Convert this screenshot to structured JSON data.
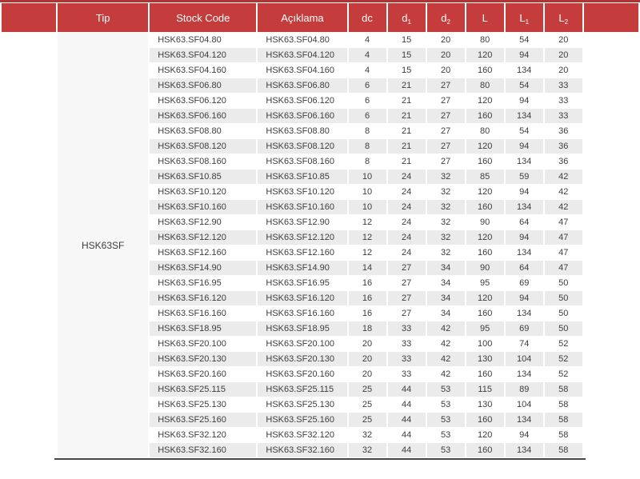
{
  "table": {
    "tip_label": "HSK63SF",
    "headers": [
      {
        "label": "Tip",
        "sub": ""
      },
      {
        "label": "Stock Code",
        "sub": ""
      },
      {
        "label": "Açıklama",
        "sub": ""
      },
      {
        "label": "dc",
        "sub": ""
      },
      {
        "label": "d",
        "sub": "1"
      },
      {
        "label": "d",
        "sub": "2"
      },
      {
        "label": "L",
        "sub": ""
      },
      {
        "label": "L",
        "sub": "1"
      },
      {
        "label": "L",
        "sub": "2"
      }
    ],
    "rows": [
      {
        "stock_code": "HSK63.SF04.80",
        "aciklama": "HSK63.SF04.80",
        "dc": 4,
        "d1": 15,
        "d2": 20,
        "L": 80,
        "L1": 54,
        "L2": 20
      },
      {
        "stock_code": "HSK63.SF04.120",
        "aciklama": "HSK63.SF04.120",
        "dc": 4,
        "d1": 15,
        "d2": 20,
        "L": 120,
        "L1": 94,
        "L2": 20
      },
      {
        "stock_code": "HSK63.SF04.160",
        "aciklama": "HSK63.SF04.160",
        "dc": 4,
        "d1": 15,
        "d2": 20,
        "L": 160,
        "L1": 134,
        "L2": 20
      },
      {
        "stock_code": "HSK63.SF06.80",
        "aciklama": "HSK63.SF06.80",
        "dc": 6,
        "d1": 21,
        "d2": 27,
        "L": 80,
        "L1": 54,
        "L2": 33
      },
      {
        "stock_code": "HSK63.SF06.120",
        "aciklama": "HSK63.SF06.120",
        "dc": 6,
        "d1": 21,
        "d2": 27,
        "L": 120,
        "L1": 94,
        "L2": 33
      },
      {
        "stock_code": "HSK63.SF06.160",
        "aciklama": "HSK63.SF06.160",
        "dc": 6,
        "d1": 21,
        "d2": 27,
        "L": 160,
        "L1": 134,
        "L2": 33
      },
      {
        "stock_code": "HSK63.SF08.80",
        "aciklama": "HSK63.SF08.80",
        "dc": 8,
        "d1": 21,
        "d2": 27,
        "L": 80,
        "L1": 54,
        "L2": 36
      },
      {
        "stock_code": "HSK63.SF08.120",
        "aciklama": "HSK63.SF08.120",
        "dc": 8,
        "d1": 21,
        "d2": 27,
        "L": 120,
        "L1": 94,
        "L2": 36
      },
      {
        "stock_code": "HSK63.SF08.160",
        "aciklama": "HSK63.SF08.160",
        "dc": 8,
        "d1": 21,
        "d2": 27,
        "L": 160,
        "L1": 134,
        "L2": 36
      },
      {
        "stock_code": "HSK63.SF10.85",
        "aciklama": "HSK63.SF10.85",
        "dc": 10,
        "d1": 24,
        "d2": 32,
        "L": 85,
        "L1": 59,
        "L2": 42
      },
      {
        "stock_code": "HSK63.SF10.120",
        "aciklama": "HSK63.SF10.120",
        "dc": 10,
        "d1": 24,
        "d2": 32,
        "L": 120,
        "L1": 94,
        "L2": 42
      },
      {
        "stock_code": "HSK63.SF10.160",
        "aciklama": "HSK63.SF10.160",
        "dc": 10,
        "d1": 24,
        "d2": 32,
        "L": 160,
        "L1": 134,
        "L2": 42
      },
      {
        "stock_code": "HSK63.SF12.90",
        "aciklama": "HSK63.SF12.90",
        "dc": 12,
        "d1": 24,
        "d2": 32,
        "L": 90,
        "L1": 64,
        "L2": 47
      },
      {
        "stock_code": "HSK63.SF12.120",
        "aciklama": "HSK63.SF12.120",
        "dc": 12,
        "d1": 24,
        "d2": 32,
        "L": 120,
        "L1": 94,
        "L2": 47
      },
      {
        "stock_code": "HSK63.SF12.160",
        "aciklama": "HSK63.SF12.160",
        "dc": 12,
        "d1": 24,
        "d2": 32,
        "L": 160,
        "L1": 134,
        "L2": 47
      },
      {
        "stock_code": "HSK63.SF14.90",
        "aciklama": "HSK63.SF14.90",
        "dc": 14,
        "d1": 27,
        "d2": 34,
        "L": 90,
        "L1": 64,
        "L2": 47
      },
      {
        "stock_code": "HSK63.SF16.95",
        "aciklama": "HSK63.SF16.95",
        "dc": 16,
        "d1": 27,
        "d2": 34,
        "L": 95,
        "L1": 69,
        "L2": 50
      },
      {
        "stock_code": "HSK63.SF16.120",
        "aciklama": "HSK63.SF16.120",
        "dc": 16,
        "d1": 27,
        "d2": 34,
        "L": 120,
        "L1": 94,
        "L2": 50
      },
      {
        "stock_code": "HSK63.SF16.160",
        "aciklama": "HSK63.SF16.160",
        "dc": 16,
        "d1": 27,
        "d2": 34,
        "L": 160,
        "L1": 134,
        "L2": 50
      },
      {
        "stock_code": "HSK63.SF18.95",
        "aciklama": "HSK63.SF18.95",
        "dc": 18,
        "d1": 33,
        "d2": 42,
        "L": 95,
        "L1": 69,
        "L2": 50
      },
      {
        "stock_code": "HSK63.SF20.100",
        "aciklama": "HSK63.SF20.100",
        "dc": 20,
        "d1": 33,
        "d2": 42,
        "L": 100,
        "L1": 74,
        "L2": 52
      },
      {
        "stock_code": "HSK63.SF20.130",
        "aciklama": "HSK63.SF20.130",
        "dc": 20,
        "d1": 33,
        "d2": 42,
        "L": 130,
        "L1": 104,
        "L2": 52
      },
      {
        "stock_code": "HSK63.SF20.160",
        "aciklama": "HSK63.SF20.160",
        "dc": 20,
        "d1": 33,
        "d2": 42,
        "L": 160,
        "L1": 134,
        "L2": 52
      },
      {
        "stock_code": "HSK63.SF25.115",
        "aciklama": "HSK63.SF25.115",
        "dc": 25,
        "d1": 44,
        "d2": 53,
        "L": 115,
        "L1": 89,
        "L2": 58
      },
      {
        "stock_code": "HSK63.SF25.130",
        "aciklama": "HSK63.SF25.130",
        "dc": 25,
        "d1": 44,
        "d2": 53,
        "L": 130,
        "L1": 104,
        "L2": 58
      },
      {
        "stock_code": "HSK63.SF25.160",
        "aciklama": "HSK63.SF25.160",
        "dc": 25,
        "d1": 44,
        "d2": 53,
        "L": 160,
        "L1": 134,
        "L2": 58
      },
      {
        "stock_code": "HSK63.SF32.120",
        "aciklama": "HSK63.SF32.120",
        "dc": 32,
        "d1": 44,
        "d2": 53,
        "L": 120,
        "L1": 94,
        "L2": 58
      },
      {
        "stock_code": "HSK63.SF32.160",
        "aciklama": "HSK63.SF32.160",
        "dc": 32,
        "d1": 44,
        "d2": 53,
        "L": 160,
        "L1": 134,
        "L2": 58
      }
    ]
  },
  "colors": {
    "header_bg": "#c53c3c",
    "header_top_bar": "#b13535",
    "header_text": "#ffffff",
    "row_bg": "#ffffff",
    "row_alt_bg": "#ebebeb",
    "tip_col_bg": "#f7f7f7",
    "body_text": "#3d3d3d",
    "bottom_rule": "#474747"
  }
}
